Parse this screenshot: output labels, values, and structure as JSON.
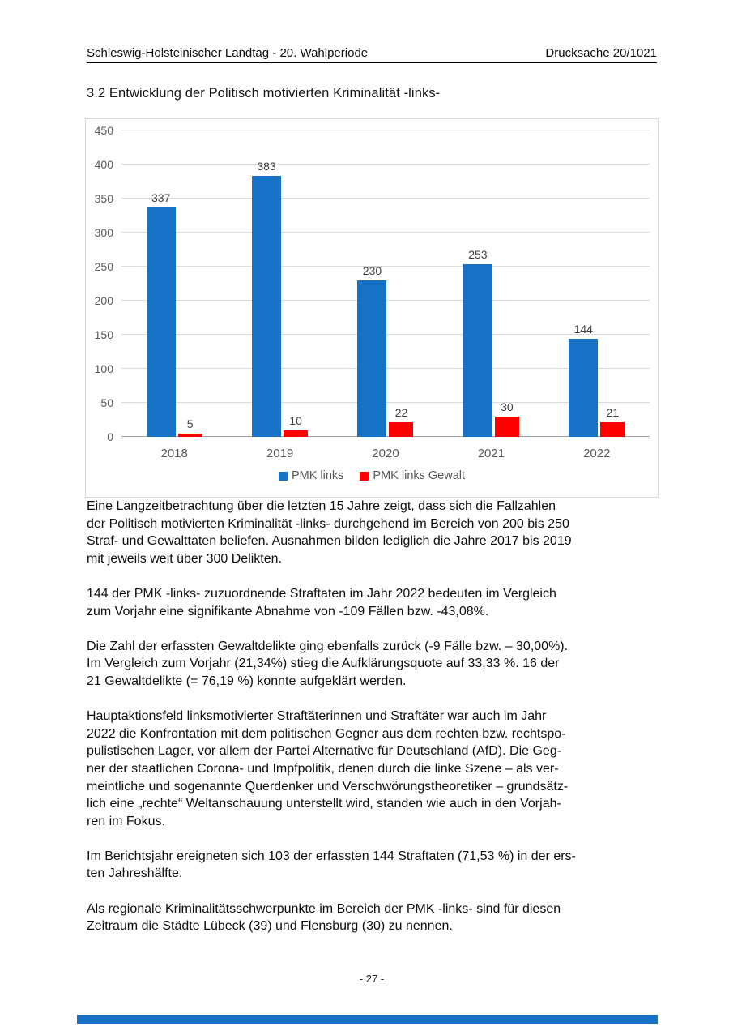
{
  "page": {
    "header": {
      "left": "Schleswig-Holsteinischer Landtag - 20. Wahlperiode",
      "right": "Drucksache 20/1021"
    },
    "section_title": "3.2 Entwicklung der Politisch motivierten Kriminalität -links-",
    "paragraphs": [
      "Eine Langzeitbetrachtung über die letzten 15 Jahre zeigt, dass sich die Fallzahlen\nder Politisch motivierten Kriminalität -links- durchgehend im Bereich von 200 bis 250\nStraf- und Gewalttaten beliefen. Ausnahmen bilden lediglich die Jahre 2017 bis 2019\nmit jeweils weit über 300 Delikten.",
      "144 der PMK -links- zuzuordnende Straftaten im Jahr 2022 bedeuten im Vergleich\nzum Vorjahr eine signifikante Abnahme von -109 Fällen bzw. -43,08%.",
      "Die Zahl der erfassten Gewaltdelikte ging ebenfalls zurück (-9 Fälle bzw. – 30,00%).\nIm Vergleich zum Vorjahr (21,34%) stieg die Aufklärungsquote auf 33,33 %. 16 der\n21 Gewaltdelikte (= 76,19 %) konnte aufgeklärt werden.",
      "Hauptaktionsfeld linksmotivierter Straftäterinnen und Straftäter war auch im Jahr\n2022 die Konfrontation mit dem politischen Gegner aus dem rechten bzw. rechtspo-\npulistischen Lager, vor allem der Partei Alternative für Deutschland (AfD). Die Geg-\nner der staatlichen Corona- und Impfpolitik, denen durch die linke Szene – als ver-\nmeintliche und sogenannte Querdenker und Verschwörungstheoretiker – grundsätz-\nlich eine „rechte“ Weltanschauung unterstellt wird, standen wie auch in den Vorjah-\nren im Fokus.",
      "Im Berichtsjahr ereigneten sich 103 der erfassten 144 Straftaten (71,53 %) in der ers-\nten Jahreshälfte.",
      "Als regionale Kriminalitätsschwerpunkte im Bereich der PMK -links- sind für diesen\nZeitraum die Städte Lübeck (39) und Flensburg (30) zu nennen."
    ],
    "page_number": "- 27 -"
  },
  "chart_data": {
    "type": "bar",
    "title": "",
    "xlabel": "",
    "ylabel": "",
    "categories": [
      "2018",
      "2019",
      "2020",
      "2021",
      "2022"
    ],
    "series": [
      {
        "name": "PMK links",
        "color": "#1572c6",
        "values": [
          337,
          383,
          230,
          253,
          144
        ]
      },
      {
        "name": "PMK links Gewalt",
        "color": "#fe0000",
        "values": [
          5,
          10,
          22,
          30,
          21
        ]
      }
    ],
    "ylim": [
      0,
      450
    ],
    "ytick_step": 50,
    "grid": true,
    "legend_position": "bottom"
  },
  "colors": {
    "accent_blue": "#1572c6",
    "accent_red": "#fe0000",
    "gridline": "#d9d9d9",
    "axis_text": "#595959",
    "bottom_bar": "#1572c6"
  }
}
